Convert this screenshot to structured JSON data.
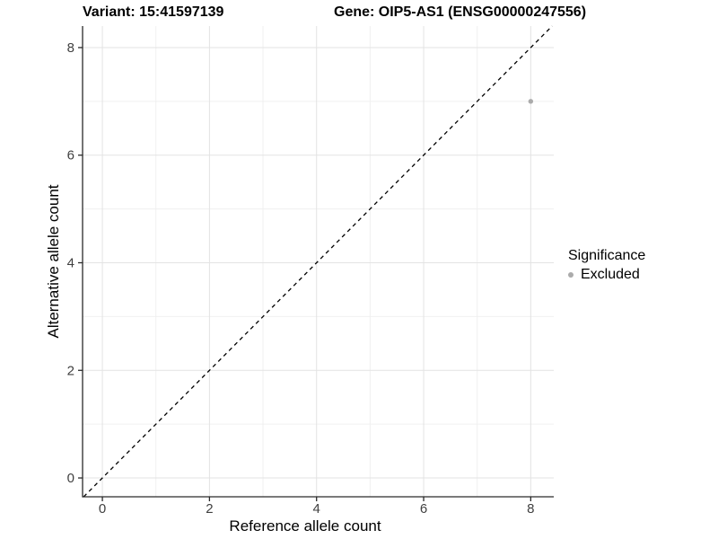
{
  "chart_data": {
    "type": "scatter",
    "titles": {
      "variant": "Variant: 15:41597139",
      "gene": "Gene: OIP5-AS1 (ENSG00000247556)"
    },
    "xlabel": "Reference allele count",
    "ylabel": "Alternative allele count",
    "xticks": [
      0,
      2,
      4,
      6,
      8
    ],
    "yticks": [
      0,
      2,
      4,
      6,
      8
    ],
    "xticks_minor": [
      1,
      3,
      5,
      7
    ],
    "yticks_minor": [
      1,
      3,
      5,
      7
    ],
    "xlim": [
      -0.37,
      8.43
    ],
    "ylim": [
      -0.35,
      8.4
    ],
    "grid": true,
    "points": [
      {
        "x": 8,
        "y": 7,
        "significance": "Excluded"
      }
    ],
    "reference_line": {
      "kind": "identity",
      "slope": 1,
      "intercept": 0,
      "style": "dashed",
      "color": "#000000"
    },
    "legend": {
      "title": "Significance",
      "position": "right",
      "items": [
        {
          "label": "Excluded",
          "color": "#ababab"
        }
      ]
    },
    "colors": {
      "point": "#ababab",
      "grid_major": "#e3e3e3",
      "grid_minor": "#f0f0f0",
      "axis_line": "#2a2a2a",
      "tick_text": "#404040",
      "background": "#ffffff"
    }
  }
}
